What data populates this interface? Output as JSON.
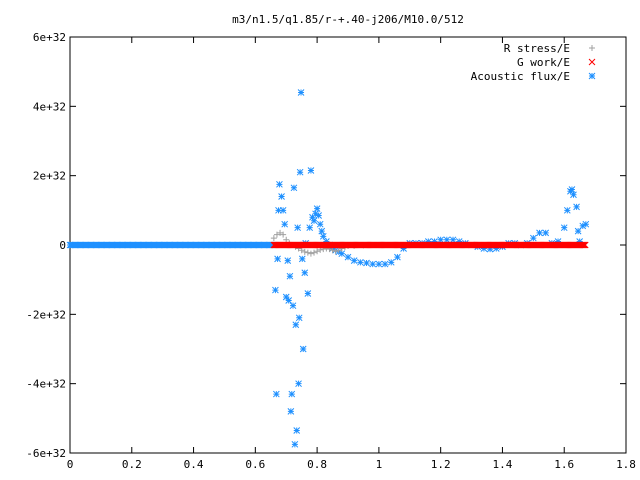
{
  "chart_data": {
    "type": "scatter",
    "title": "m3/n1.5/q1.85/r-+.40-j206/M10.0/512",
    "xlabel": "",
    "ylabel": "",
    "xlim": [
      0,
      1.8
    ],
    "ylim": [
      -6e+32,
      6e+32
    ],
    "x_ticks": [
      0,
      0.2,
      0.4,
      0.6,
      0.8,
      1,
      1.2,
      1.4,
      1.6,
      1.8
    ],
    "x_tick_labels": [
      "0",
      "0.2",
      "0.4",
      "0.6",
      "0.8",
      "1",
      "1.2",
      "1.4",
      "1.6",
      "1.8"
    ],
    "y_ticks": [
      -6e+32,
      -4e+32,
      -2e+32,
      0,
      2e+32,
      4e+32,
      6e+32
    ],
    "y_tick_labels": [
      "-6e+32",
      "-4e+32",
      "-2e+32",
      "0",
      "2e+32",
      "4e+32",
      "6e+32"
    ],
    "grid": false,
    "legend_position": "top-right",
    "series": [
      {
        "name": "R stress/E",
        "marker": "+",
        "color": "#a0a0a0",
        "points": [
          [
            0.66,
            2e+31
          ],
          [
            0.67,
            3e+31
          ],
          [
            0.68,
            3.5e+31
          ],
          [
            0.69,
            3e+31
          ],
          [
            0.7,
            1.5e+31
          ],
          [
            0.71,
            5e+30
          ],
          [
            0.72,
            0.0
          ],
          [
            0.73,
            -5e+30
          ],
          [
            0.74,
            -1e+31
          ],
          [
            0.75,
            -1.5e+31
          ],
          [
            0.76,
            -2e+31
          ],
          [
            0.77,
            -2.2e+31
          ],
          [
            0.78,
            -2.5e+31
          ],
          [
            0.79,
            -2.2e+31
          ],
          [
            0.8,
            -1.8e+31
          ],
          [
            0.81,
            -1.4e+31
          ],
          [
            0.82,
            -1.2e+31
          ],
          [
            0.83,
            -1e+31
          ],
          [
            0.84,
            -1.2e+31
          ],
          [
            0.85,
            -1.5e+31
          ],
          [
            0.86,
            -1.8e+31
          ],
          [
            0.87,
            -1.5e+31
          ],
          [
            0.88,
            -1e+31
          ],
          [
            0.89,
            -6e+30
          ],
          [
            0.9,
            -3e+30
          ],
          [
            0.92,
            -2e+30
          ],
          [
            0.95,
            -1e+30
          ],
          [
            1.0,
            0.0
          ],
          [
            1.1,
            0.0
          ],
          [
            1.2,
            0.0
          ],
          [
            1.3,
            0.0
          ],
          [
            1.4,
            0.0
          ],
          [
            1.5,
            0.0
          ],
          [
            1.6,
            0.0
          ],
          [
            1.66,
            0.0
          ]
        ]
      },
      {
        "name": "G work/E",
        "marker": "x",
        "color": "#ff0000",
        "x_range": [
          0.66,
          1.67
        ],
        "y": 0
      },
      {
        "name": "Acoustic flux/E",
        "marker": "*",
        "color": "#1e90ff",
        "baseline_x_range": [
          0,
          0.66
        ],
        "baseline_y": 0,
        "points": [
          [
            0.665,
            -1.3e+32
          ],
          [
            0.668,
            -4.3e+32
          ],
          [
            0.672,
            -4e+31
          ],
          [
            0.675,
            1e+32
          ],
          [
            0.678,
            1.75e+32
          ],
          [
            0.685,
            1.4e+32
          ],
          [
            0.69,
            1e+32
          ],
          [
            0.695,
            6e+31
          ],
          [
            0.7,
            -1.5e+32
          ],
          [
            0.705,
            -4.5e+31
          ],
          [
            0.708,
            -1.6e+32
          ],
          [
            0.712,
            -9e+31
          ],
          [
            0.715,
            -4.8e+32
          ],
          [
            0.718,
            -4.3e+32
          ],
          [
            0.722,
            -1.75e+32
          ],
          [
            0.725,
            1.65e+32
          ],
          [
            0.728,
            -5.75e+32
          ],
          [
            0.731,
            -2.3e+32
          ],
          [
            0.734,
            -5.35e+32
          ],
          [
            0.737,
            5e+31
          ],
          [
            0.74,
            -4e+32
          ],
          [
            0.742,
            -2.1e+32
          ],
          [
            0.745,
            2.1e+32
          ],
          [
            0.748,
            4.4e+32
          ],
          [
            0.752,
            -4e+31
          ],
          [
            0.755,
            -3e+32
          ],
          [
            0.76,
            -8e+31
          ],
          [
            0.763,
            5e+30
          ],
          [
            0.77,
            -1.4e+32
          ],
          [
            0.776,
            5e+31
          ],
          [
            0.78,
            2.15e+32
          ],
          [
            0.785,
            8e+31
          ],
          [
            0.79,
            7e+31
          ],
          [
            0.795,
            9e+31
          ],
          [
            0.8,
            1.05e+32
          ],
          [
            0.805,
            8.5e+31
          ],
          [
            0.81,
            6e+31
          ],
          [
            0.815,
            4e+31
          ],
          [
            0.82,
            2.5e+31
          ],
          [
            0.83,
            1e+31
          ],
          [
            0.84,
            0.0
          ],
          [
            0.85,
            -1e+31
          ],
          [
            0.86,
            -1.5e+31
          ],
          [
            0.87,
            -2e+31
          ],
          [
            0.88,
            -2.5e+31
          ],
          [
            0.9,
            -3.5e+31
          ],
          [
            0.92,
            -4.5e+31
          ],
          [
            0.94,
            -5e+31
          ],
          [
            0.96,
            -5.2e+31
          ],
          [
            0.98,
            -5.5e+31
          ],
          [
            1.0,
            -5.5e+31
          ],
          [
            1.02,
            -5.5e+31
          ],
          [
            1.04,
            -5e+31
          ],
          [
            1.06,
            -3.5e+31
          ],
          [
            1.08,
            -1e+31
          ],
          [
            1.1,
            5e+30
          ],
          [
            1.12,
            5e+30
          ],
          [
            1.14,
            5e+30
          ],
          [
            1.16,
            1e+31
          ],
          [
            1.18,
            1e+31
          ],
          [
            1.2,
            1.5e+31
          ],
          [
            1.22,
            1.5e+31
          ],
          [
            1.24,
            1.5e+31
          ],
          [
            1.26,
            1e+31
          ],
          [
            1.28,
            5e+30
          ],
          [
            1.3,
            0.0
          ],
          [
            1.32,
            -5e+30
          ],
          [
            1.34,
            -1e+31
          ],
          [
            1.36,
            -1.2e+31
          ],
          [
            1.38,
            -1e+31
          ],
          [
            1.4,
            -5e+30
          ],
          [
            1.42,
            5e+30
          ],
          [
            1.44,
            5e+30
          ],
          [
            1.46,
            0.0
          ],
          [
            1.48,
            5e+30
          ],
          [
            1.5,
            2e+31
          ],
          [
            1.52,
            3.5e+31
          ],
          [
            1.54,
            3.5e+31
          ],
          [
            1.56,
            5e+30
          ],
          [
            1.58,
            1e+31
          ],
          [
            1.6,
            5e+31
          ],
          [
            1.61,
            1e+32
          ],
          [
            1.62,
            1.55e+32
          ],
          [
            1.625,
            1.6e+32
          ],
          [
            1.63,
            1.45e+32
          ],
          [
            1.64,
            1.1e+32
          ],
          [
            1.645,
            4e+31
          ],
          [
            1.65,
            1e+31
          ],
          [
            1.66,
            5.5e+31
          ],
          [
            1.67,
            6e+31
          ]
        ]
      }
    ]
  }
}
